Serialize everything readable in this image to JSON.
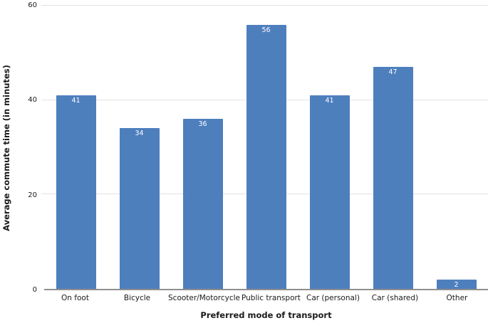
{
  "figure": {
    "background": "#ffffff"
  },
  "chart_data": {
    "type": "bar",
    "title": "",
    "xlabel": "Preferred mode of transport",
    "ylabel": "Average commute time (in minutes)",
    "categories": [
      "On foot",
      "Bicycle",
      "Scooter/Motorcycle",
      "Public transport",
      "Car (personal)",
      "Car (shared)",
      "Other"
    ],
    "values": [
      41,
      34,
      36,
      56,
      41,
      47,
      2
    ],
    "bar_labels": [
      "41",
      "34",
      "36",
      "56",
      "41",
      "47",
      "2"
    ],
    "ylim": [
      0,
      60
    ],
    "yticks": [
      0,
      20,
      40,
      60
    ],
    "grid": "horizontal-gridlines",
    "legend": "none",
    "colors": {
      "bar": "#4e7fbd",
      "bar_label": "#ffffff",
      "gridline": "#e3e3e3",
      "axis_line": "#8f8f8f",
      "text": "#1a1a1a",
      "background": "#ffffff"
    }
  }
}
